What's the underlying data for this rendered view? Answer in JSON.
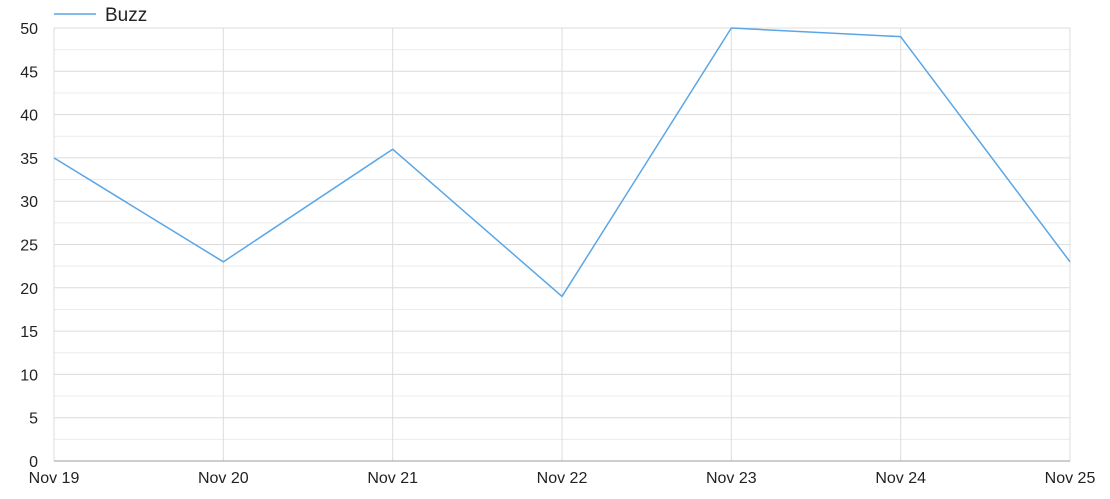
{
  "chart_data": {
    "type": "line",
    "title": "",
    "xlabel": "",
    "ylabel": "",
    "x": [
      "Nov 19",
      "Nov 20",
      "Nov 21",
      "Nov 22",
      "Nov 23",
      "Nov 24",
      "Nov 25"
    ],
    "series": [
      {
        "name": "Buzz",
        "values": [
          35,
          23,
          36,
          19,
          50,
          49,
          23
        ],
        "color": "#5aa6e6"
      }
    ],
    "ylim": [
      0,
      50
    ],
    "yticks": [
      0,
      5,
      10,
      15,
      20,
      25,
      30,
      35,
      40,
      45,
      50
    ],
    "ytick_labels": [
      "0",
      "5",
      "10",
      "15",
      "20",
      "25",
      "30",
      "35",
      "40",
      "45",
      "50"
    ],
    "grid": true,
    "legend": {
      "position": "top-left",
      "entries": [
        "Buzz"
      ]
    }
  }
}
